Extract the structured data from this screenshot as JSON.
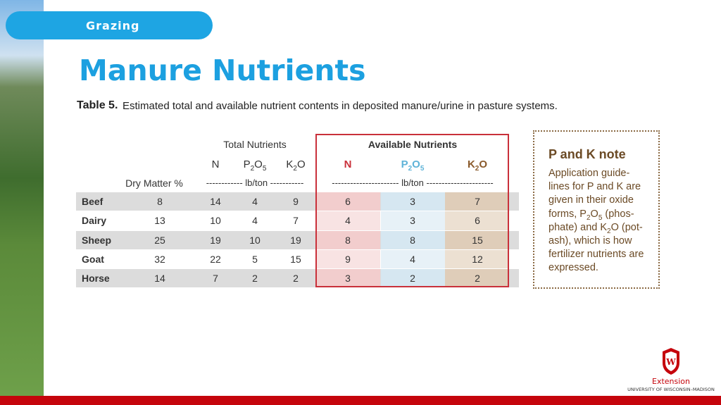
{
  "header": {
    "tag": "Grazing",
    "title": "Manure Nutrients"
  },
  "table": {
    "caption_label": "Table 5.",
    "caption": "Estimated total and available nutrient contents in deposited manure/urine in pasture systems.",
    "groups": [
      "Total Nutrients",
      "Available Nutrients"
    ],
    "dry_matter": "Dry Matter %",
    "units": [
      "------------ lb/ton -----------",
      "---------------------- lb/ton ----------------------"
    ],
    "columns": [
      [
        "N"
      ],
      [
        "P",
        "2",
        "O",
        "5"
      ],
      [
        "K",
        "2",
        "O"
      ],
      [
        "N"
      ],
      [
        "P",
        "2",
        "O",
        "5"
      ],
      [
        "K",
        "2",
        "O"
      ]
    ],
    "rows": [
      [
        "Beef",
        8,
        14,
        4,
        9,
        6,
        3,
        7
      ],
      [
        "Dairy",
        13,
        10,
        4,
        7,
        4,
        3,
        6
      ],
      [
        "Sheep",
        25,
        19,
        10,
        19,
        8,
        8,
        15
      ],
      [
        "Goat",
        32,
        22,
        5,
        15,
        9,
        4,
        12
      ],
      [
        "Horse",
        14,
        7,
        2,
        2,
        3,
        2,
        2
      ]
    ]
  },
  "note": {
    "title": "P and K note",
    "lines": [
      [
        "Application guide-"
      ],
      [
        "lines for P and K are"
      ],
      [
        "given in their oxide"
      ],
      [
        "forms, P",
        "2",
        "O",
        "5",
        " (phos-"
      ],
      [
        "phate) and K",
        "2",
        "O (pot-"
      ],
      [
        "ash), which is how"
      ],
      [
        "fertilizer nutrients are"
      ],
      [
        "expressed."
      ]
    ]
  },
  "logo": {
    "name": "Extension",
    "org": "UNIVERSITY OF WISCONSIN–MADISON"
  }
}
